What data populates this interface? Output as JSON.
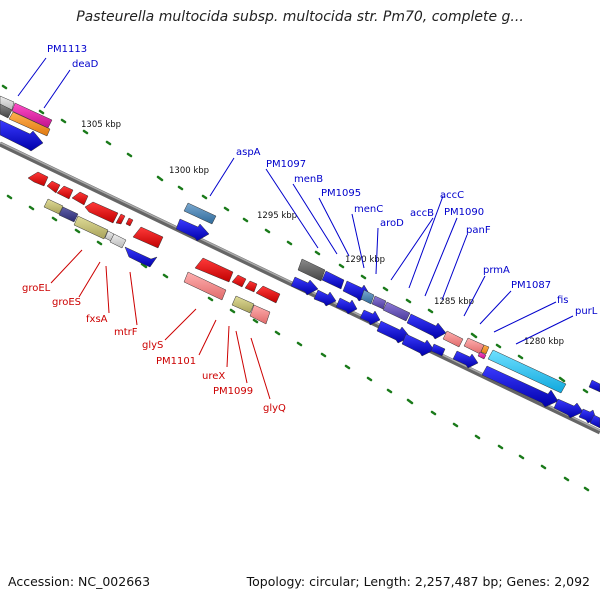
{
  "title": "Pasteurella multocida subsp. multocida str. Pm70, complete g...",
  "footer": {
    "accession": "Accession: NC_002663",
    "summary": "Topology: circular; Length: 2,257,487 bp; Genes: 2,092"
  },
  "scale_ticks": [
    "1305 kbp",
    "1300 kbp",
    "1295 kbp",
    "1290 kbp",
    "1285 kbp",
    "1280 kbp"
  ],
  "labels_top": [
    "PM1113",
    "deaD",
    "aspA",
    "PM1097",
    "menB",
    "PM1095",
    "menC",
    "aroD",
    "accB",
    "accC",
    "PM1090",
    "panF",
    "prmA",
    "PM1087",
    "fis",
    "purL"
  ],
  "labels_bottom": [
    "groEL",
    "groES",
    "fxsA",
    "mtrF",
    "glyS",
    "PM1101",
    "ureX",
    "PM1099",
    "glyQ"
  ],
  "colors": {
    "forward_label": "#0000cc",
    "reverse_label": "#cc0000",
    "tick": "#1a7a1a",
    "backbone": "#777777"
  }
}
